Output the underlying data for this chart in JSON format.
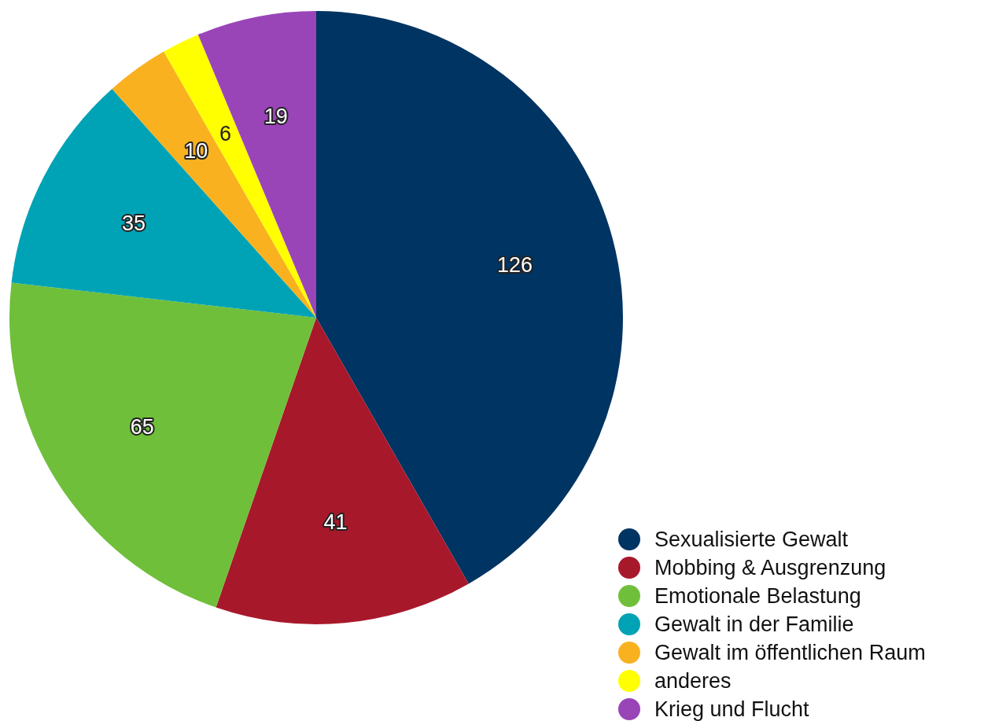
{
  "chart_data": {
    "type": "pie",
    "categories": [
      "Sexualisierte Gewalt",
      "Mobbing & Ausgrenzung",
      "Emotionale Belastung",
      "Gewalt in der Familie",
      "Gewalt im öffentlichen Raum",
      "anderes",
      "Krieg und Flucht"
    ],
    "values": [
      126,
      41,
      65,
      35,
      10,
      6,
      19
    ],
    "colors": [
      "#003462",
      "#a8182b",
      "#6fbf3a",
      "#00a3b5",
      "#f9b11f",
      "#ffff00",
      "#9945b8"
    ],
    "data_labels": true,
    "legend": "bottom right"
  }
}
